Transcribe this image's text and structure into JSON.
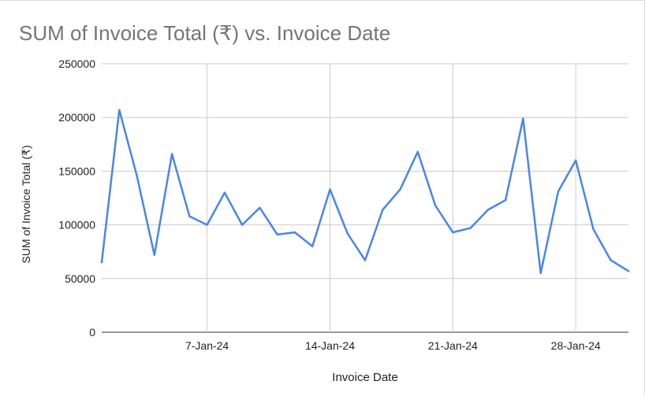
{
  "chart_data": {
    "type": "line",
    "title": "SUM of Invoice Total (₹) vs. Invoice Date",
    "xlabel": "Invoice Date",
    "ylabel": "SUM of Invoice Total (₹)",
    "ylim": [
      0,
      250000
    ],
    "yticks": [
      "0",
      "50000",
      "100000",
      "150000",
      "200000",
      "250000"
    ],
    "xticks": [
      "7-Jan-24",
      "14-Jan-24",
      "21-Jan-24",
      "28-Jan-24"
    ],
    "x": [
      "1-Jan-24",
      "2-Jan-24",
      "3-Jan-24",
      "4-Jan-24",
      "5-Jan-24",
      "6-Jan-24",
      "7-Jan-24",
      "8-Jan-24",
      "9-Jan-24",
      "10-Jan-24",
      "11-Jan-24",
      "12-Jan-24",
      "13-Jan-24",
      "14-Jan-24",
      "15-Jan-24",
      "16-Jan-24",
      "17-Jan-24",
      "18-Jan-24",
      "19-Jan-24",
      "20-Jan-24",
      "21-Jan-24",
      "22-Jan-24",
      "23-Jan-24",
      "24-Jan-24",
      "25-Jan-24",
      "26-Jan-24",
      "27-Jan-24",
      "28-Jan-24",
      "29-Jan-24",
      "30-Jan-24",
      "31-Jan-24"
    ],
    "series": [
      {
        "values": [
          65000,
          207000,
          146000,
          72000,
          166000,
          108000,
          100000,
          130000,
          100000,
          116000,
          91000,
          93000,
          80000,
          133000,
          92000,
          67000,
          114000,
          133000,
          168000,
          118000,
          93000,
          97000,
          114000,
          123000,
          199000,
          55000,
          131000,
          160000,
          96000,
          67000,
          57000
        ],
        "color": "#4a86e8"
      }
    ],
    "grid": true,
    "legend": "none"
  }
}
